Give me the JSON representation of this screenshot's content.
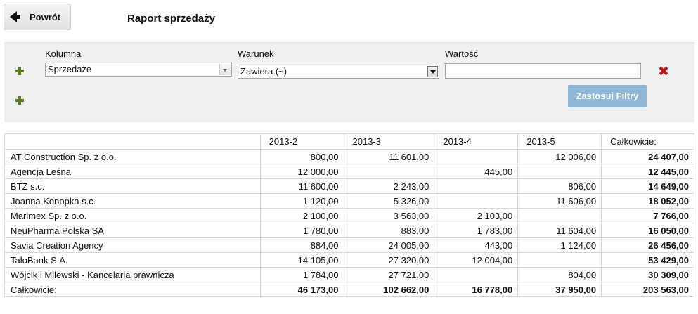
{
  "header": {
    "back_label": "Powrót",
    "title": "Raport sprzedaży"
  },
  "filters": {
    "column_label": "Kolumna",
    "condition_label": "Warunek",
    "value_label": "Wartość",
    "column_value": "Sprzedaże",
    "condition_value": "Zawiera (~)",
    "value_value": "",
    "apply_label": "Zastosuj Filtry"
  },
  "table": {
    "columns": [
      "",
      "2013-2",
      "2013-3",
      "2013-4",
      "2013-5",
      "Całkowicie:"
    ],
    "rows": [
      [
        "AT Construction Sp. z o.o.",
        "800,00",
        "11 601,00",
        "",
        "12 006,00",
        "24 407,00"
      ],
      [
        "Agencja Leśna",
        "12 000,00",
        "",
        "445,00",
        "",
        "12 445,00"
      ],
      [
        "BTZ s.c.",
        "11 600,00",
        "2 243,00",
        "",
        "806,00",
        "14 649,00"
      ],
      [
        "Joanna Konopka s.c.",
        "1 120,00",
        "5 326,00",
        "",
        "11 606,00",
        "18 052,00"
      ],
      [
        "Marimex Sp. z o.o.",
        "2 100,00",
        "3 563,00",
        "2 103,00",
        "",
        "7 766,00"
      ],
      [
        "NeuPharma Polska SA",
        "1 780,00",
        "883,00",
        "1 783,00",
        "11 604,00",
        "16 050,00"
      ],
      [
        "Savia Creation Agency",
        "884,00",
        "24 005,00",
        "443,00",
        "1 124,00",
        "26 456,00"
      ],
      [
        "TaloBank S.A.",
        "14 105,00",
        "27 320,00",
        "12 004,00",
        "",
        "53 429,00"
      ],
      [
        "Wójcik i Milewski - Kancelaria prawnicza",
        "1 784,00",
        "27 721,00",
        "",
        "804,00",
        "30 309,00"
      ]
    ],
    "totals": [
      "Całkowicie:",
      "46 173,00",
      "102 662,00",
      "16 778,00",
      "37 950,00",
      "203 563,00"
    ]
  },
  "colors": {
    "plus": "#5a7a1a",
    "remove": "#cc1111",
    "apply_button": "#8fb7d8",
    "panel": "#f0f0f0"
  }
}
